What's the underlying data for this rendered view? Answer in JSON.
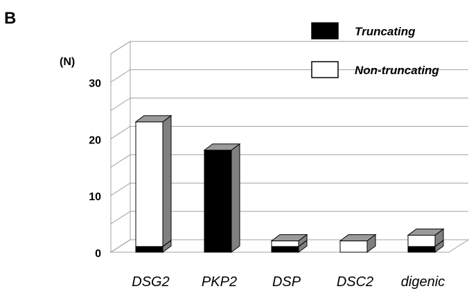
{
  "panel_label": "B",
  "chart_data": {
    "type": "bar",
    "stacked": true,
    "three_d": true,
    "categories": [
      "DSG2",
      "PKP2",
      "DSP",
      "DSC2",
      "digenic"
    ],
    "series": [
      {
        "name": "Truncating",
        "values": [
          1,
          18,
          1,
          0,
          1
        ]
      },
      {
        "name": "Non-truncating",
        "values": [
          22,
          0,
          1,
          2,
          2
        ]
      }
    ],
    "y_unit_label": "(N)",
    "yticks": [
      0,
      10,
      20,
      30
    ],
    "ylim": [
      0,
      35
    ],
    "grid": true,
    "legend_position": "top-right",
    "colors": {
      "Truncating": "#000000",
      "Non-truncating": "#ffffff",
      "side_face": "#808080",
      "top_face": "#9a9a9a",
      "gridline": "#a0a0a0"
    }
  }
}
